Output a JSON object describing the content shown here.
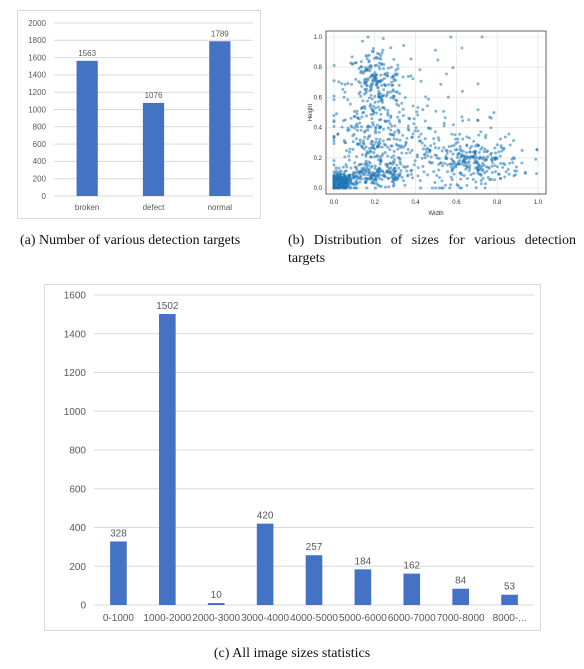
{
  "captions": {
    "a": "(a)  Number of various detection targets",
    "b": "(b)  Distribution of sizes for various detection targets",
    "c": "(c)  All image sizes statistics"
  },
  "colors": {
    "bar": "#4472c4",
    "scatter": "#1f77b4",
    "grid": "#d9d9d9",
    "axis_text": "#595959"
  },
  "chart_data": [
    {
      "id": "a",
      "type": "bar",
      "categories": [
        "broken",
        "defect",
        "normal"
      ],
      "values": [
        1563,
        1076,
        1789
      ],
      "data_labels": [
        "1563",
        "1076",
        "1789"
      ],
      "yticks": [
        "0",
        "200",
        "400",
        "600",
        "800",
        "1000",
        "1200",
        "1400",
        "1600",
        "1800",
        "2000"
      ],
      "ylim": [
        0,
        2000
      ],
      "grid": true
    },
    {
      "id": "b",
      "type": "scatter",
      "xlabel": "Width",
      "ylabel": "Height",
      "xticks": [
        "0.0",
        "0.2",
        "0.4",
        "0.6",
        "0.8",
        "1.0"
      ],
      "yticks": [
        "0.0",
        "0.2",
        "0.4",
        "0.6",
        "0.8",
        "1.0"
      ],
      "xlim": [
        0,
        1
      ],
      "ylim": [
        0,
        1
      ],
      "grid": true,
      "clusters": [
        {
          "cx": 0.03,
          "cy": 0.04,
          "sx": 0.03,
          "sy": 0.03,
          "n": 260
        },
        {
          "cx": 0.2,
          "cy": 0.08,
          "sx": 0.1,
          "sy": 0.04,
          "n": 200
        },
        {
          "cx": 0.2,
          "cy": 0.68,
          "sx": 0.07,
          "sy": 0.13,
          "n": 240
        },
        {
          "cx": 0.18,
          "cy": 0.3,
          "sx": 0.1,
          "sy": 0.1,
          "n": 190
        },
        {
          "cx": 0.68,
          "cy": 0.17,
          "sx": 0.12,
          "sy": 0.07,
          "n": 260
        },
        {
          "cx": 0.5,
          "cy": 0.3,
          "sx": 0.18,
          "sy": 0.15,
          "n": 110
        },
        {
          "cx": 0.4,
          "cy": 0.6,
          "sx": 0.2,
          "sy": 0.2,
          "n": 40
        }
      ]
    },
    {
      "id": "c",
      "type": "bar",
      "categories": [
        "0-1000",
        "1000-2000",
        "2000-3000",
        "3000-4000",
        "4000-5000",
        "5000-6000",
        "6000-7000",
        "7000-8000",
        "8000-..."
      ],
      "values": [
        328,
        1502,
        10,
        420,
        257,
        184,
        162,
        84,
        53
      ],
      "data_labels": [
        "328",
        "1502",
        "10",
        "420",
        "257",
        "184",
        "162",
        "84",
        "53"
      ],
      "yticks": [
        "0",
        "200",
        "400",
        "600",
        "800",
        "1000",
        "1200",
        "1400",
        "1600"
      ],
      "ylim": [
        0,
        1600
      ],
      "grid": true
    }
  ]
}
